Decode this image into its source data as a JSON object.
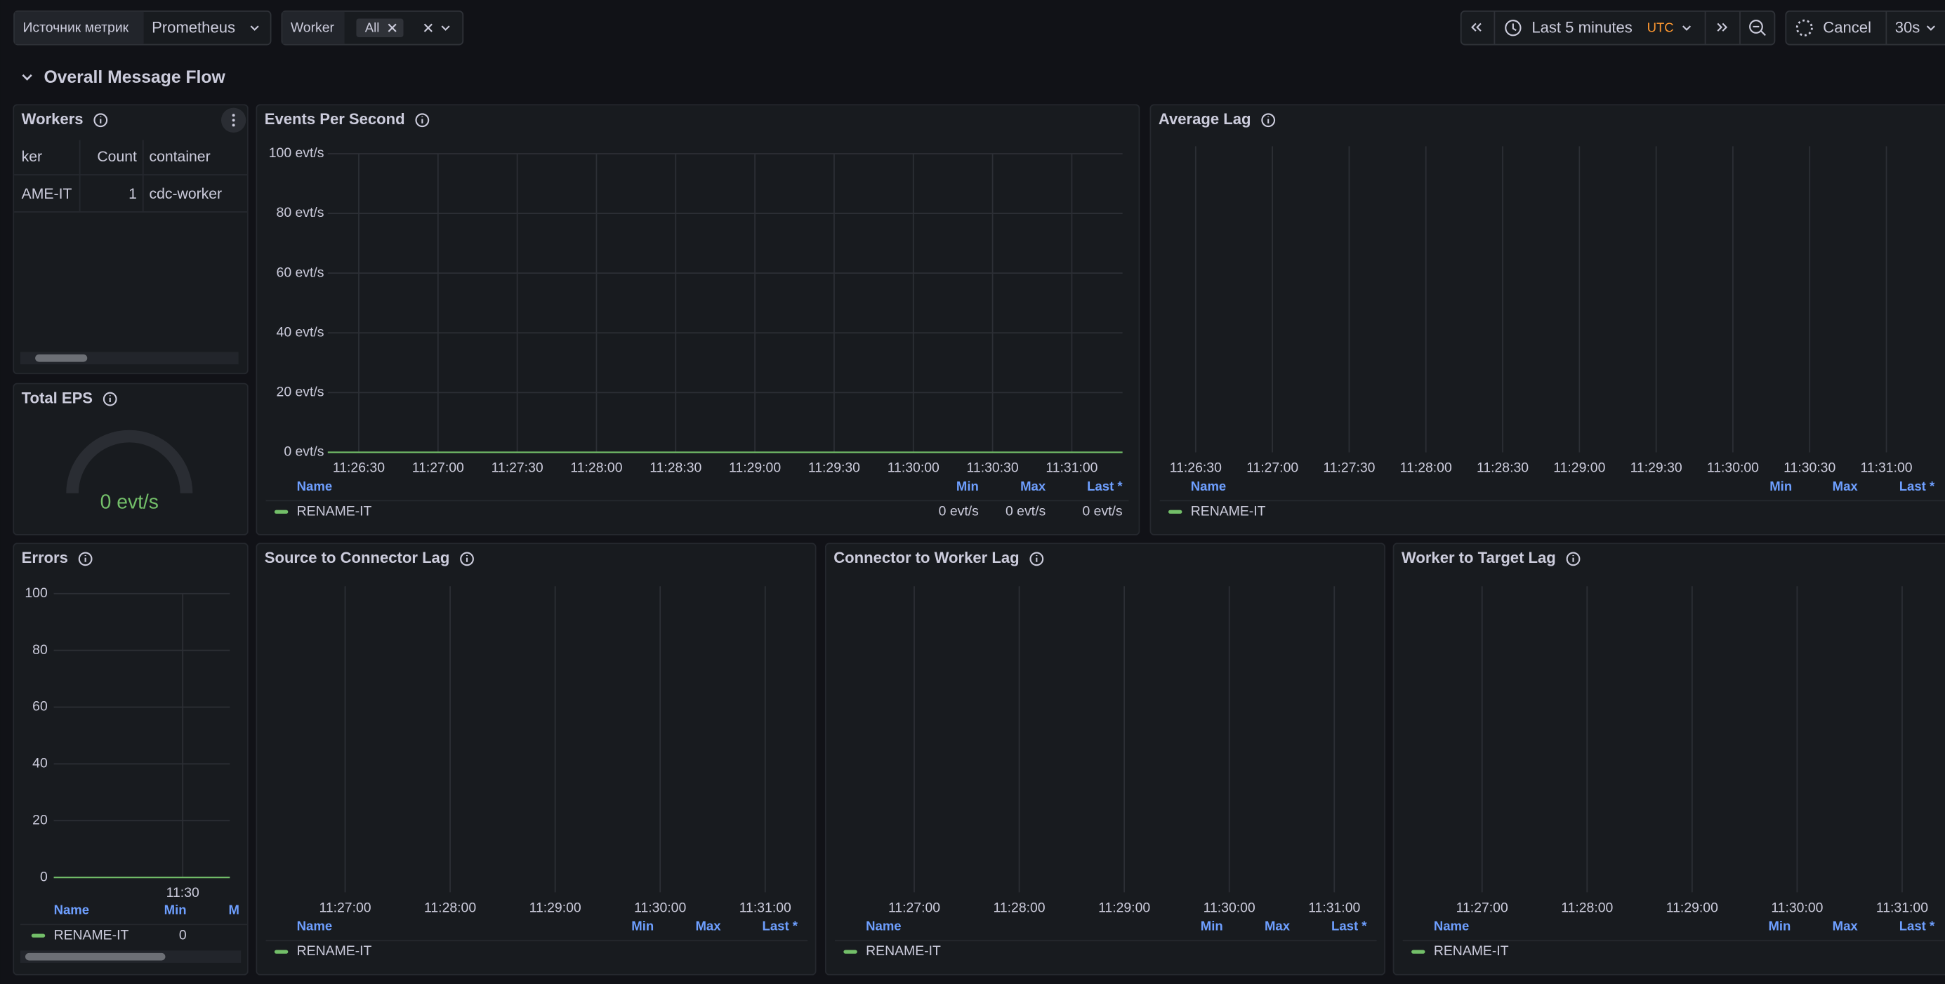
{
  "toolbar": {
    "datasource_label": "Источник метрик",
    "datasource": "Prometheus",
    "variable_label": "Worker",
    "variable_value": "All",
    "time_range": "Last 5 minutes",
    "timezone": "UTC",
    "cancel": "Cancel",
    "refresh": "30s"
  },
  "row_title": "Overall Message Flow",
  "panels": {
    "workers": {
      "title": "Workers",
      "columns": [
        "ker",
        "Count",
        "container"
      ],
      "rows": [
        [
          "AME-IT",
          1,
          "cdc-worker"
        ]
      ]
    },
    "events_per_second": {
      "title": "Events Per Second",
      "yticks": [
        "100 evt/s",
        "80 evt/s",
        "60 evt/s",
        "40 evt/s",
        "20 evt/s",
        "0 evt/s"
      ],
      "xticks": [
        "11:26:30",
        "11:27:00",
        "11:27:30",
        "11:28:00",
        "11:28:30",
        "11:29:00",
        "11:29:30",
        "11:30:00",
        "11:30:30",
        "11:31:00"
      ],
      "legend": {
        "columns": [
          "Name",
          "Min",
          "Max",
          "Last *"
        ],
        "series": [
          {
            "name": "RENAME-IT",
            "color": "#73bf69",
            "stats": [
              "0 evt/s",
              "0 evt/s",
              "0 evt/s"
            ]
          }
        ]
      }
    },
    "average_lag": {
      "title": "Average Lag",
      "xticks": [
        "11:26:30",
        "11:27:00",
        "11:27:30",
        "11:28:00",
        "11:28:30",
        "11:29:00",
        "11:29:30",
        "11:30:00",
        "11:30:30",
        "11:31:00"
      ],
      "legend": {
        "columns": [
          "Name",
          "Min",
          "Max",
          "Last *"
        ],
        "series": [
          {
            "name": "RENAME-IT",
            "color": "#73bf69"
          }
        ]
      }
    },
    "total_eps": {
      "title": "Total EPS",
      "value": "0 evt/s",
      "color": "#73bf69"
    },
    "errors": {
      "title": "Errors",
      "yticks": [
        100,
        80,
        60,
        40,
        20,
        0
      ],
      "xticks": [
        "11:30"
      ],
      "legend": {
        "columns": [
          "Name",
          "Min",
          "M"
        ],
        "series": [
          {
            "name": "RENAME-IT",
            "color": "#73bf69",
            "stats": [
              0
            ]
          }
        ]
      }
    },
    "source_to_connector_lag": {
      "title": "Source to Connector Lag",
      "xticks": [
        "11:27:00",
        "11:28:00",
        "11:29:00",
        "11:30:00",
        "11:31:00"
      ],
      "legend": {
        "columns": [
          "Name",
          "Min",
          "Max",
          "Last *"
        ],
        "series": [
          {
            "name": "RENAME-IT",
            "color": "#73bf69"
          }
        ]
      }
    },
    "connector_to_worker_lag": {
      "title": "Connector to Worker Lag",
      "xticks": [
        "11:27:00",
        "11:28:00",
        "11:29:00",
        "11:30:00",
        "11:31:00"
      ],
      "legend": {
        "columns": [
          "Name",
          "Min",
          "Max",
          "Last *"
        ],
        "series": [
          {
            "name": "RENAME-IT",
            "color": "#73bf69"
          }
        ]
      }
    },
    "worker_to_target_lag": {
      "title": "Worker to Target Lag",
      "xticks": [
        "11:27:00",
        "11:28:00",
        "11:29:00",
        "11:30:00",
        "11:31:00"
      ],
      "legend": {
        "columns": [
          "Name",
          "Min",
          "Max",
          "Last *"
        ],
        "series": [
          {
            "name": "RENAME-IT",
            "color": "#73bf69"
          }
        ]
      }
    }
  }
}
